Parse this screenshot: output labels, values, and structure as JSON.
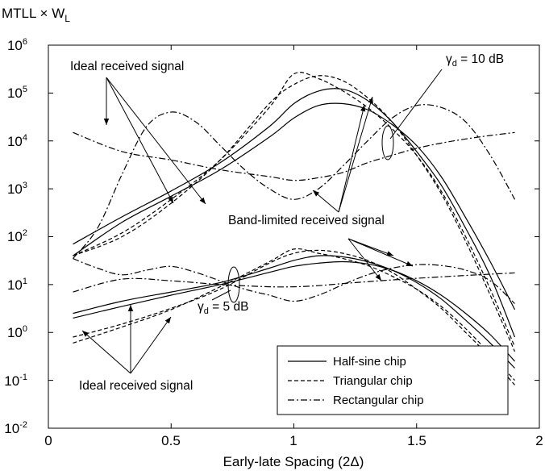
{
  "chart_data": {
    "type": "line",
    "ylabel": "MTLL × W",
    "ylabel_sub": "L",
    "xlabel": "Early-late Spacing (2Δ)",
    "x_scale": "linear",
    "y_scale": "log",
    "xlim": [
      0,
      2
    ],
    "ylim": [
      0.01,
      1000000
    ],
    "x_ticks": [
      "0",
      "0.5",
      "1",
      "1.5",
      "2"
    ],
    "y_ticks": [
      {
        "base": "10",
        "exp": "-2"
      },
      {
        "base": "10",
        "exp": "-1"
      },
      {
        "base": "10",
        "exp": "0"
      },
      {
        "base": "10",
        "exp": "1"
      },
      {
        "base": "10",
        "exp": "2"
      },
      {
        "base": "10",
        "exp": "3"
      },
      {
        "base": "10",
        "exp": "4"
      },
      {
        "base": "10",
        "exp": "5"
      },
      {
        "base": "10",
        "exp": "6"
      }
    ],
    "grid": false,
    "legend_position": "bottom-right",
    "legend": [
      {
        "label": "Half-sine chip",
        "style": "solid"
      },
      {
        "label": "Triangular chip",
        "style": "dashed"
      },
      {
        "label": "Rectangular chip",
        "style": "dashdot"
      }
    ],
    "annotations": [
      "Ideal received signal",
      "Band-limited received signal",
      "Ideal received signal"
    ],
    "gamma_labels": [
      {
        "symbol": "γ",
        "sub": "d",
        "text": " = 10 dB"
      },
      {
        "symbol": "γ",
        "sub": "d",
        "text": " = 5 dB"
      }
    ],
    "series": [
      {
        "group": "10 dB",
        "chip": "Half-sine",
        "signal": "Ideal",
        "style": "solid",
        "x": [
          0.1,
          0.3,
          0.5,
          0.7,
          0.9,
          1.0,
          1.1,
          1.2,
          1.3,
          1.4,
          1.5,
          1.6,
          1.7,
          1.8,
          1.9
        ],
        "y": [
          40,
          200,
          700,
          2500,
          12000,
          30000,
          55000,
          60000,
          45000,
          22000,
          8000,
          1800,
          250,
          30,
          3
        ]
      },
      {
        "group": "10 dB",
        "chip": "Half-sine",
        "signal": "Band-limited",
        "style": "solid",
        "x": [
          0.1,
          0.3,
          0.5,
          0.7,
          0.9,
          1.0,
          1.1,
          1.2,
          1.3,
          1.4,
          1.5,
          1.6,
          1.7,
          1.8,
          1.9
        ],
        "y": [
          70,
          260,
          900,
          3500,
          20000,
          60000,
          110000,
          120000,
          70000,
          25000,
          6000,
          1200,
          150,
          15,
          0.8
        ]
      },
      {
        "group": "10 dB",
        "chip": "Triangular",
        "signal": "Ideal",
        "style": "dashed",
        "x": [
          0.1,
          0.3,
          0.5,
          0.7,
          0.9,
          1.0,
          1.1,
          1.2,
          1.3,
          1.4,
          1.5,
          1.6,
          1.7,
          1.8,
          1.9
        ],
        "y": [
          40,
          120,
          600,
          4000,
          50000,
          250000,
          200000,
          110000,
          50000,
          18000,
          5000,
          900,
          100,
          8,
          0.5
        ]
      },
      {
        "group": "10 dB",
        "chip": "Triangular",
        "signal": "Band-limited",
        "style": "dashed",
        "x": [
          0.1,
          0.3,
          0.5,
          0.7,
          0.9,
          1.0,
          1.1,
          1.2,
          1.3,
          1.4,
          1.5,
          1.6,
          1.7,
          1.8,
          1.9
        ],
        "y": [
          40,
          100,
          500,
          4000,
          60000,
          150000,
          230000,
          180000,
          80000,
          25000,
          5000,
          800,
          80,
          6,
          0.4
        ]
      },
      {
        "group": "10 dB",
        "chip": "Rectangular",
        "signal": "Ideal",
        "style": "dashdot",
        "x": [
          0.1,
          0.3,
          0.5,
          0.7,
          0.9,
          1.0,
          1.1,
          1.2,
          1.3,
          1.4,
          1.5,
          1.6,
          1.7,
          1.8,
          1.9
        ],
        "y": [
          15000,
          6000,
          4000,
          2500,
          1800,
          1500,
          1700,
          2200,
          3500,
          5000,
          7000,
          9000,
          11000,
          13000,
          15000
        ]
      },
      {
        "group": "10 dB",
        "chip": "Rectangular",
        "signal": "Band-limited",
        "style": "dashdot",
        "x": [
          0.1,
          0.2,
          0.3,
          0.4,
          0.5,
          0.6,
          0.7,
          0.8,
          0.9,
          1.0,
          1.1,
          1.2,
          1.3,
          1.4,
          1.5,
          1.6,
          1.7,
          1.8,
          1.9
        ],
        "y": [
          35,
          150,
          2000,
          20000,
          40000,
          25000,
          8000,
          2500,
          1000,
          600,
          1000,
          3000,
          10000,
          30000,
          55000,
          50000,
          25000,
          5000,
          600
        ]
      },
      {
        "group": "5 dB",
        "chip": "Half-sine",
        "signal": "Ideal",
        "style": "solid",
        "x": [
          0.1,
          0.3,
          0.5,
          0.7,
          0.9,
          1.0,
          1.1,
          1.2,
          1.3,
          1.4,
          1.5,
          1.6,
          1.7,
          1.8,
          1.9
        ],
        "y": [
          2,
          3.5,
          6,
          10,
          18,
          24,
          28,
          30,
          27,
          20,
          12,
          6,
          2.5,
          0.9,
          0.25
        ]
      },
      {
        "group": "5 dB",
        "chip": "Half-sine",
        "signal": "Band-limited",
        "style": "solid",
        "x": [
          0.1,
          0.3,
          0.5,
          0.7,
          0.9,
          1.0,
          1.1,
          1.2,
          1.3,
          1.4,
          1.5,
          1.6,
          1.7,
          1.8,
          1.9
        ],
        "y": [
          2.5,
          4.5,
          7,
          11,
          22,
          32,
          40,
          38,
          30,
          20,
          11,
          5,
          1.8,
          0.6,
          0.18
        ]
      },
      {
        "group": "5 dB",
        "chip": "Triangular",
        "signal": "Ideal",
        "style": "dashed",
        "x": [
          0.1,
          0.3,
          0.5,
          0.7,
          0.9,
          1.0,
          1.1,
          1.2,
          1.3,
          1.4,
          1.5,
          1.6,
          1.7,
          1.8,
          1.9
        ],
        "y": [
          0.6,
          1.3,
          3,
          9,
          30,
          55,
          45,
          35,
          25,
          15,
          8,
          3.5,
          1.2,
          0.35,
          0.1
        ]
      },
      {
        "group": "5 dB",
        "chip": "Triangular",
        "signal": "Band-limited",
        "style": "dashed",
        "x": [
          0.1,
          0.3,
          0.5,
          0.7,
          0.9,
          1.0,
          1.1,
          1.2,
          1.3,
          1.4,
          1.5,
          1.6,
          1.7,
          1.8,
          1.9
        ],
        "y": [
          0.8,
          1.5,
          3.2,
          8,
          28,
          45,
          52,
          45,
          32,
          18,
          8,
          3.2,
          1,
          0.3,
          0.08
        ]
      },
      {
        "group": "5 dB",
        "chip": "Rectangular",
        "signal": "Ideal",
        "style": "dashdot",
        "x": [
          0.1,
          0.3,
          0.5,
          0.7,
          0.9,
          1.0,
          1.1,
          1.2,
          1.3,
          1.4,
          1.5,
          1.6,
          1.7,
          1.8,
          1.9
        ],
        "y": [
          7,
          13,
          12,
          10,
          9,
          9,
          9.5,
          10.5,
          11.5,
          12.5,
          13.5,
          14.5,
          15.5,
          16.5,
          17.5
        ]
      },
      {
        "group": "5 dB",
        "chip": "Rectangular",
        "signal": "Band-limited",
        "style": "dashdot",
        "x": [
          0.1,
          0.2,
          0.3,
          0.4,
          0.5,
          0.6,
          0.7,
          0.8,
          0.9,
          1.0,
          1.1,
          1.2,
          1.3,
          1.4,
          1.5,
          1.6,
          1.7,
          1.8,
          1.9
        ],
        "y": [
          35,
          22,
          16,
          20,
          24,
          18,
          12,
          8,
          6,
          4.5,
          6,
          10,
          16,
          22,
          26,
          25,
          20,
          12,
          4
        ]
      }
    ]
  }
}
